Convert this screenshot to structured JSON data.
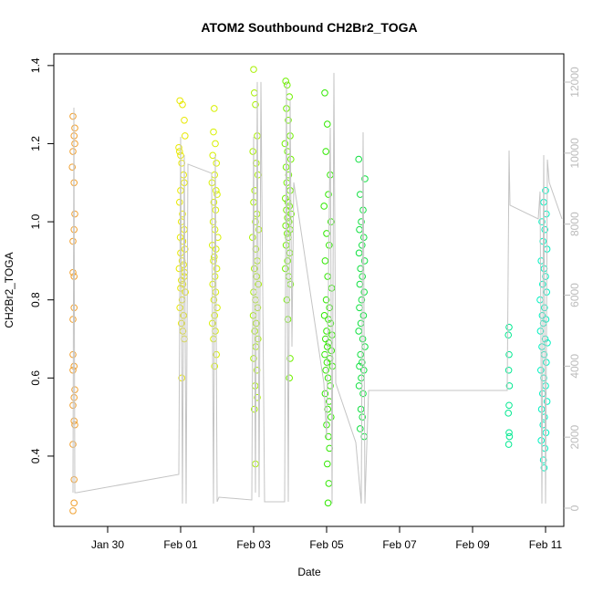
{
  "chart_data": {
    "type": "scatter",
    "title": "ATOM2 Southbound CH2Br2_TOGA",
    "xlabel": "Date",
    "ylabel": "CH2Br2_TOGA",
    "xlim": [
      28.525,
      42.5
    ],
    "xticks": [
      {
        "value": 30,
        "label": "Jan 30"
      },
      {
        "value": 32,
        "label": "Feb 01"
      },
      {
        "value": 34,
        "label": "Feb 03"
      },
      {
        "value": 36,
        "label": "Feb 05"
      },
      {
        "value": 38,
        "label": "Feb 07"
      },
      {
        "value": 40,
        "label": "Feb 09"
      },
      {
        "value": 42,
        "label": "Feb 11"
      }
    ],
    "ylim": [
      0.22,
      1.43
    ],
    "yticks": [
      0.4,
      0.6,
      0.8,
      {
        "value": 1.0,
        "label": "1.0"
      },
      1.2,
      1.4
    ],
    "y2lim": [
      -514,
      12797
    ],
    "y2ticks": [
      0,
      2000,
      4000,
      6000,
      8000,
      10000,
      12000
    ],
    "series": [
      {
        "color": "#f0a030",
        "x": [
          29.05,
          29.1,
          29.08,
          29.1,
          29.05,
          29.03,
          29.08,
          29.1,
          29.08,
          29.05,
          29.05,
          29.08,
          29.08,
          29.05,
          29.05,
          29.08,
          29.05,
          29.1,
          29.08,
          29.05,
          29.08,
          29.1,
          29.05,
          29.08,
          29.08,
          29.05
        ],
        "values": [
          1.27,
          1.24,
          1.22,
          1.2,
          1.18,
          1.14,
          1.1,
          1.02,
          0.98,
          0.95,
          0.87,
          0.86,
          0.78,
          0.75,
          0.66,
          0.63,
          0.62,
          0.57,
          0.55,
          0.53,
          0.49,
          0.48,
          0.43,
          0.34,
          0.28,
          0.26
        ]
      },
      {
        "color": "#e8e800",
        "x": [
          31.98,
          32.05,
          32.1,
          32.12,
          31.95,
          32.0,
          32.03,
          32.08,
          32.1,
          32.0,
          31.97,
          32.05,
          32.02,
          32.1,
          31.99,
          32.06,
          32.12,
          32.0,
          32.04,
          32.08,
          31.96,
          32.1,
          32.02,
          32.06,
          32.0,
          32.13,
          32.04,
          31.98,
          32.08,
          32.02,
          32.06,
          32.1,
          32.03,
          31.97,
          32.11
        ],
        "values": [
          1.31,
          1.3,
          1.26,
          1.22,
          1.19,
          1.17,
          1.15,
          1.12,
          1.1,
          1.08,
          1.05,
          1.02,
          1.0,
          0.98,
          0.96,
          0.95,
          0.93,
          0.92,
          0.9,
          0.89,
          0.88,
          0.86,
          0.85,
          0.84,
          0.83,
          0.82,
          0.8,
          0.78,
          0.76,
          0.74,
          0.72,
          0.7,
          0.6,
          1.18,
          0.87
        ]
      },
      {
        "color": "#d8f000",
        "x": [
          32.92,
          32.9,
          32.95,
          32.88,
          32.98,
          32.93,
          32.86,
          33.0,
          32.91,
          32.96,
          32.89,
          32.94,
          33.02,
          32.87,
          32.97,
          32.92,
          32.9,
          32.99,
          32.94,
          32.88,
          32.96,
          32.91,
          33.0,
          32.93,
          32.87,
          32.95,
          32.9,
          32.98,
          32.93,
          32.97
        ],
        "values": [
          1.29,
          1.23,
          1.2,
          1.17,
          1.15,
          1.12,
          1.1,
          1.07,
          1.05,
          1.03,
          1.0,
          0.98,
          0.96,
          0.94,
          0.93,
          0.91,
          0.9,
          0.88,
          0.86,
          0.84,
          0.82,
          0.8,
          0.78,
          0.76,
          0.74,
          0.72,
          0.7,
          0.66,
          0.63,
          1.08
        ]
      },
      {
        "color": "#a8f000",
        "x": [
          34.0,
          34.02,
          34.05,
          34.1,
          33.98,
          34.07,
          34.12,
          34.03,
          34.0,
          34.09,
          34.05,
          34.14,
          33.97,
          34.06,
          34.1,
          34.02,
          34.08,
          34.13,
          34.0,
          34.05,
          34.11,
          33.99,
          34.07,
          34.03,
          34.12,
          34.06,
          34.0,
          34.09,
          34.04,
          34.1,
          34.02,
          34.05
        ],
        "values": [
          1.39,
          1.33,
          1.3,
          1.22,
          1.18,
          1.15,
          1.12,
          1.08,
          1.05,
          1.02,
          1.0,
          0.98,
          0.96,
          0.93,
          0.9,
          0.88,
          0.86,
          0.84,
          0.82,
          0.8,
          0.78,
          0.76,
          0.74,
          0.72,
          0.7,
          0.68,
          0.65,
          0.62,
          0.58,
          0.55,
          0.52,
          0.38
        ]
      },
      {
        "color": "#70f000",
        "x": [
          34.88,
          34.92,
          34.98,
          34.9,
          34.95,
          35.0,
          34.86,
          34.93,
          35.02,
          34.89,
          34.96,
          34.91,
          35.0,
          34.87,
          34.94,
          34.98,
          34.9,
          35.03,
          34.93,
          34.97,
          34.88,
          35.0,
          34.92,
          34.95,
          34.89,
          34.99,
          34.93,
          34.87,
          34.96,
          35.01,
          34.91,
          34.94,
          35.0,
          34.98
        ],
        "values": [
          1.36,
          1.35,
          1.32,
          1.29,
          1.26,
          1.22,
          1.2,
          1.18,
          1.16,
          1.14,
          1.12,
          1.1,
          1.08,
          1.06,
          1.05,
          1.04,
          1.03,
          1.02,
          1.01,
          1.0,
          0.99,
          0.98,
          0.97,
          0.96,
          0.94,
          0.92,
          0.9,
          0.88,
          0.86,
          0.84,
          0.8,
          0.75,
          0.65,
          0.6
        ]
      },
      {
        "color": "#30e800",
        "x": [
          35.95,
          36.02,
          35.98,
          36.1,
          36.05,
          35.93,
          36.12,
          36.0,
          36.07,
          35.96,
          36.03,
          36.14,
          35.99,
          36.08,
          35.94,
          36.05,
          36.11,
          36.0,
          36.15,
          35.97,
          36.06,
          36.02,
          36.13,
          35.95,
          36.09,
          36.01,
          36.16,
          35.98,
          36.04,
          36.1,
          35.96,
          36.07,
          36.03,
          36.12,
          36.0,
          36.05,
          36.08,
          36.02,
          36.06,
          36.04
        ],
        "values": [
          1.33,
          1.25,
          1.18,
          1.12,
          1.07,
          1.04,
          1.0,
          0.97,
          0.94,
          0.9,
          0.86,
          0.83,
          0.8,
          0.78,
          0.76,
          0.75,
          0.74,
          0.72,
          0.71,
          0.7,
          0.69,
          0.68,
          0.67,
          0.66,
          0.65,
          0.64,
          0.63,
          0.62,
          0.6,
          0.58,
          0.56,
          0.54,
          0.52,
          0.5,
          0.48,
          0.45,
          0.42,
          0.38,
          0.33,
          0.28
        ]
      },
      {
        "color": "#10e040",
        "x": [
          36.88,
          37.05,
          36.92,
          37.0,
          36.95,
          36.9,
          37.02,
          36.97,
          36.89,
          37.04,
          36.93,
          36.98,
          36.91,
          37.03,
          36.96,
          36.9,
          37.01,
          36.94,
          36.88,
          36.99,
          37.05,
          36.93,
          36.97,
          36.9,
          37.02,
          36.95,
          36.89,
          37.0,
          36.94,
          36.98,
          36.92,
          37.03
        ],
        "values": [
          1.16,
          1.11,
          1.07,
          1.03,
          1.0,
          0.98,
          0.96,
          0.94,
          0.92,
          0.9,
          0.88,
          0.86,
          0.84,
          0.82,
          0.8,
          0.78,
          0.76,
          0.74,
          0.72,
          0.7,
          0.68,
          0.66,
          0.64,
          0.63,
          0.62,
          0.6,
          0.58,
          0.56,
          0.52,
          0.5,
          0.47,
          0.45
        ]
      },
      {
        "color": "#00e890",
        "x": [
          41.0,
          40.98,
          41.0,
          40.99,
          41.01,
          41.0,
          40.98,
          41.0,
          41.01,
          40.99
        ],
        "values": [
          0.73,
          0.71,
          0.66,
          0.62,
          0.58,
          0.53,
          0.51,
          0.46,
          0.45,
          0.43
        ]
      },
      {
        "color": "#00f0c0",
        "x": [
          42.0,
          41.95,
          42.02,
          41.9,
          41.98,
          41.93,
          42.04,
          41.88,
          41.96,
          42.0,
          41.92,
          42.03,
          41.85,
          41.97,
          41.91,
          42.01,
          41.94,
          41.86,
          41.99,
          42.05,
          41.9,
          41.96,
          42.02,
          41.87,
          41.95,
          42.0,
          41.92,
          42.04,
          41.89,
          41.97,
          41.93,
          42.01,
          41.88,
          41.98,
          41.94,
          41.96
        ],
        "values": [
          1.08,
          1.05,
          1.02,
          1.0,
          0.98,
          0.95,
          0.93,
          0.9,
          0.88,
          0.86,
          0.84,
          0.82,
          0.8,
          0.78,
          0.76,
          0.75,
          0.74,
          0.72,
          0.7,
          0.69,
          0.68,
          0.66,
          0.64,
          0.62,
          0.6,
          0.58,
          0.56,
          0.54,
          0.52,
          0.5,
          0.48,
          0.46,
          0.44,
          0.42,
          0.39,
          0.37
        ]
      },
      {
        "type": "line",
        "axis": "y2",
        "color": "#c4c4c4",
        "x": [
          29.05,
          29.075,
          29.1,
          29.15,
          31.95,
          32.0,
          32.05,
          32.1,
          32.15,
          32.2,
          32.85,
          32.9,
          32.95,
          33.0,
          33.05,
          33.95,
          34.0,
          34.05,
          34.1,
          34.15,
          34.2,
          34.3,
          34.85,
          34.9,
          34.95,
          35.0,
          35.05,
          35.1,
          35.925,
          36.0,
          36.1,
          36.15,
          36.2,
          36.25,
          36.8,
          36.95,
          37.0,
          37.05,
          37.15,
          40.95,
          41.0,
          41.025,
          41.8,
          41.85,
          41.9,
          41.95,
          42.0,
          42.05,
          42.1,
          42.45
        ],
        "values": [
          437,
          11282,
          437,
          437,
          951,
          10460,
          129,
          9946,
          129,
          9689,
          9432,
          129,
          9946,
          180,
          308,
          231,
          10460,
          437,
          12002,
          308,
          12002,
          180,
          180,
          12002,
          180,
          11488,
          4549,
          9175,
          3521,
          1979,
          10717,
          129,
          12259,
          3521,
          1850,
          129,
          10588,
          129,
          3315,
          3315,
          10074,
          8532,
          8147,
          8918,
          129,
          9946,
          129,
          9817,
          9175,
          8147
        ]
      }
    ]
  }
}
